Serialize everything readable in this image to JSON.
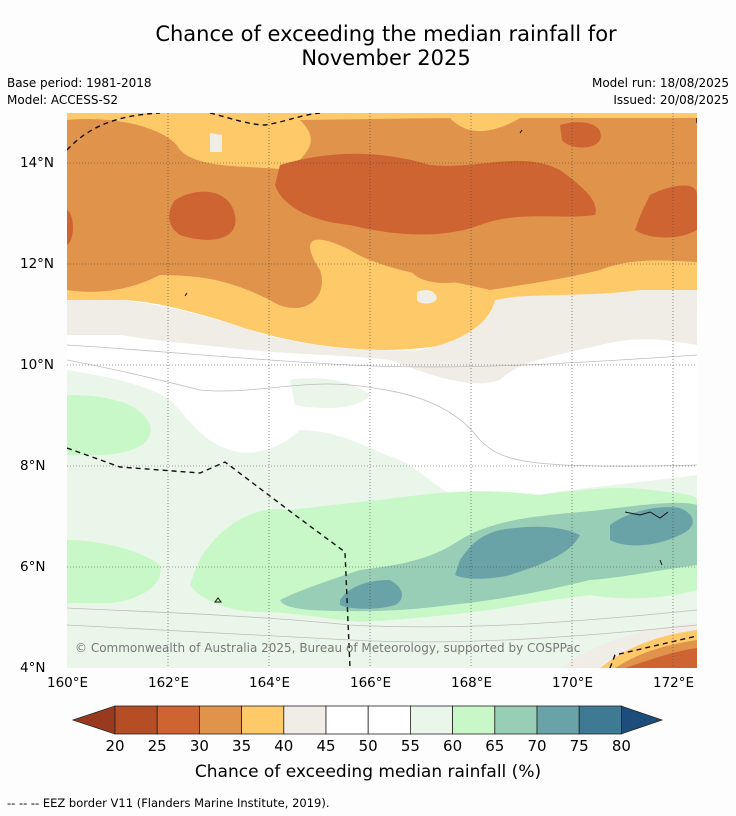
{
  "title_line1": "Chance of exceeding the median rainfall for",
  "title_line2": "November 2025",
  "base_period": "Base period: 1981-2018",
  "model": "Model: ACCESS-S2",
  "model_run": "Model run: 18/08/2025",
  "issued": "Issued: 20/08/2025",
  "copyright": "© Commonwealth of Australia 2025, Bureau of Meteorology, supported by COSPPac",
  "x_ticks": [
    "160°E",
    "162°E",
    "164°E",
    "166°E",
    "168°E",
    "170°E",
    "172°E"
  ],
  "y_ticks": [
    "14°N",
    "12°N",
    "10°N",
    "8°N",
    "6°N",
    "4°N"
  ],
  "colorbar": {
    "labels": [
      "20",
      "25",
      "30",
      "35",
      "40",
      "45",
      "50",
      "55",
      "60",
      "65",
      "70",
      "75",
      "80"
    ],
    "colors": [
      "#993a1f",
      "#b54d25",
      "#cd6432",
      "#e0934a",
      "#fec969",
      "#f0ece6",
      "#ffffff",
      "#ffffff",
      "#eaf6e9",
      "#c8f8c8",
      "#98cdb6",
      "#6aa3a7",
      "#3f7a95",
      "#1d4d7a"
    ],
    "title": "Chance of exceeding median rainfall (%)"
  },
  "footer": "--  --  -- EEZ border V11 (Flanders Marine Institute, 2019)."
}
